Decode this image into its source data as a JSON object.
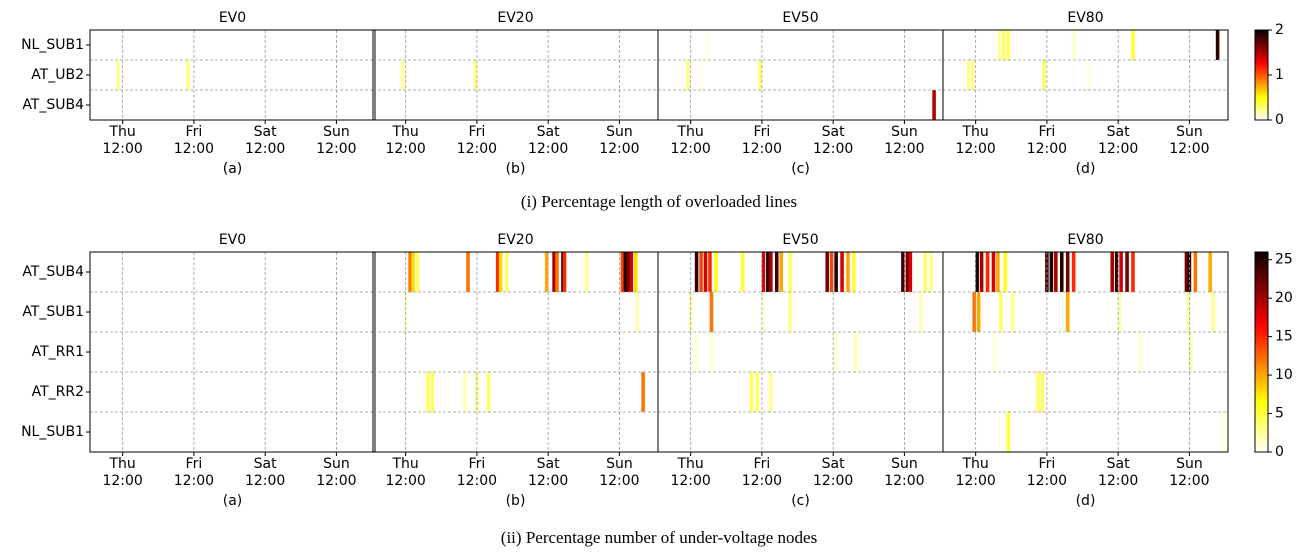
{
  "chart_data": [
    {
      "type": "heatmap",
      "title": "(i) Percentage length of overloaded lines",
      "colormap": "hot_r",
      "rows": [
        "NL_SUB1",
        "AT_UB2",
        "AT_SUB4"
      ],
      "xlim": [
        0,
        96
      ],
      "xticks": [
        {
          "value": 11,
          "label": "Thu\n12:00"
        },
        {
          "value": 35,
          "label": "Fri\n12:00"
        },
        {
          "value": 59,
          "label": "Sat\n12:00"
        },
        {
          "value": 83,
          "label": "Sun\n12:00"
        }
      ],
      "clim": [
        0,
        2
      ],
      "cticks": [
        0,
        1,
        2
      ],
      "grid": true,
      "panels": [
        {
          "title": "EV0",
          "label": "(a)",
          "series": [
            {
              "x": [],
              "values": []
            },
            {
              "x": [
                9.5,
                33
              ],
              "values": [
                0.2,
                0.25
              ]
            },
            {
              "x": [],
              "values": []
            }
          ]
        },
        {
          "title": "EV20",
          "label": "(b)",
          "series": [
            {
              "x": [],
              "values": []
            },
            {
              "x": [
                10,
                34.5
              ],
              "values": [
                0.2,
                0.25
              ]
            },
            {
              "x": [],
              "values": []
            }
          ]
        },
        {
          "title": "EV50",
          "label": "(c)",
          "series": [
            {
              "x": [
                17
              ],
              "values": [
                0.05
              ]
            },
            {
              "x": [
                10,
                15,
                34.5
              ],
              "values": [
                0.25,
                0.05,
                0.3
              ]
            },
            {
              "x": [
                93
              ],
              "values": [
                1.5
              ]
            }
          ]
        },
        {
          "title": "EV80",
          "label": "(d)",
          "series": [
            {
              "x": [
                19,
                20.5,
                22,
                44,
                64,
                92.5
              ],
              "values": [
                0.2,
                0.3,
                0.3,
                0.1,
                0.4,
                1.9
              ]
            },
            {
              "x": [
                8.5,
                10,
                34,
                49
              ],
              "values": [
                0.2,
                0.25,
                0.3,
                0.05
              ]
            },
            {
              "x": [],
              "values": []
            }
          ]
        }
      ]
    },
    {
      "type": "heatmap",
      "title": "(ii) Percentage number of under-voltage nodes",
      "colormap": "hot_r",
      "rows": [
        "AT_SUB4",
        "AT_SUB1",
        "AT_RR1",
        "AT_RR2",
        "NL_SUB1"
      ],
      "xlim": [
        0,
        96
      ],
      "xticks": [
        {
          "value": 11,
          "label": "Thu\n12:00"
        },
        {
          "value": 35,
          "label": "Fri\n12:00"
        },
        {
          "value": 59,
          "label": "Sat\n12:00"
        },
        {
          "value": 83,
          "label": "Sun\n12:00"
        }
      ],
      "clim": [
        0,
        26
      ],
      "cticks": [
        0,
        5,
        10,
        15,
        20,
        25
      ],
      "grid": true,
      "panels": [
        {
          "title": "EV0",
          "label": "(a)",
          "series": [
            {
              "x": [],
              "values": []
            },
            {
              "x": [],
              "values": []
            },
            {
              "x": [],
              "values": []
            },
            {
              "x": [],
              "values": []
            },
            {
              "x": [],
              "values": []
            }
          ]
        },
        {
          "title": "EV20",
          "label": "(b)",
          "series": [
            {
              "x": [
                12.5,
                13.5,
                15,
                32,
                42,
                43,
                45,
                58.5,
                61,
                62,
                64,
                64.5,
                72,
                84,
                85,
                86,
                87,
                88.5
              ],
              "values": [
                12,
                8,
                4,
                12,
                15,
                8,
                4,
                10,
                20,
                12,
                25,
                15,
                3,
                14,
                25,
                22,
                18,
                8
              ]
            },
            {
              "x": [
                10.8,
                89
              ],
              "values": [
                1,
                2
              ]
            },
            {
              "x": [],
              "values": []
            },
            {
              "x": [
                18.5,
                20,
                31,
                35,
                39,
                91
              ],
              "values": [
                4,
                4,
                2,
                3,
                4,
                12
              ]
            },
            {
              "x": [],
              "values": []
            }
          ]
        },
        {
          "title": "EV50",
          "label": "(c)",
          "series": [
            {
              "x": [
                13,
                14.5,
                16,
                17.5,
                19.5,
                28.5,
                35.5,
                37,
                38,
                40,
                41.5,
                44.5,
                57,
                58.5,
                60,
                62,
                64,
                66,
                82.5,
                84,
                85,
                90,
                92
              ],
              "values": [
                25,
                14,
                18,
                15,
                6,
                5,
                18,
                25,
                20,
                24,
                10,
                4,
                22,
                14,
                25,
                18,
                10,
                5,
                24,
                22,
                18,
                4,
                3
              ]
            },
            {
              "x": [
                11,
                18,
                35.5,
                44.5,
                88.5
              ],
              "values": [
                2,
                12,
                1,
                3,
                2
              ]
            },
            {
              "x": [
                13,
                18,
                60,
                66.5
              ],
              "values": [
                1,
                1,
                1,
                2
              ]
            },
            {
              "x": [
                31.5,
                33.5,
                38
              ],
              "values": [
                4,
                4,
                3
              ]
            },
            {
              "x": [],
              "values": []
            }
          ]
        },
        {
          "title": "EV80",
          "label": "(d)",
          "series": [
            {
              "x": [
                11.5,
                13,
                15,
                17,
                18.5,
                21,
                35,
                36.5,
                38,
                40,
                42,
                44,
                57,
                58.5,
                60,
                62,
                64,
                82,
                83,
                85,
                90
              ],
              "values": [
                25,
                20,
                15,
                18,
                10,
                6,
                24,
                25,
                20,
                25,
                22,
                15,
                20,
                25,
                18,
                22,
                15,
                22,
                25,
                12,
                10
              ]
            },
            {
              "x": [
                10.5,
                12,
                19.5,
                23.5,
                42,
                59.5,
                82.5,
                91
              ],
              "values": [
                12,
                10,
                4,
                3,
                10,
                2,
                2,
                3
              ]
            },
            {
              "x": [
                17,
                66.5,
                83.5
              ],
              "values": [
                1,
                1,
                2
              ]
            },
            {
              "x": [
                32,
                33.5
              ],
              "values": [
                4,
                4
              ]
            },
            {
              "x": [
                22,
                95
              ],
              "values": [
                5,
                1
              ]
            }
          ]
        }
      ]
    }
  ]
}
